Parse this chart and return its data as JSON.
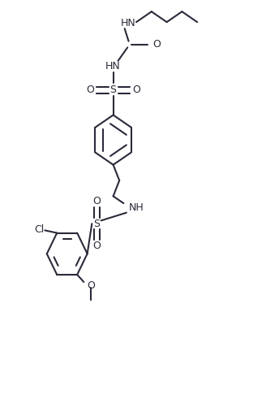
{
  "bg_color": "#ffffff",
  "line_color": "#2a2a3a",
  "line_width": 1.5,
  "font_size": 9,
  "fig_width": 3.28,
  "fig_height": 4.86,
  "dpi": 100,
  "xlim": [
    -1,
    11
  ],
  "ylim": [
    0,
    15
  ]
}
